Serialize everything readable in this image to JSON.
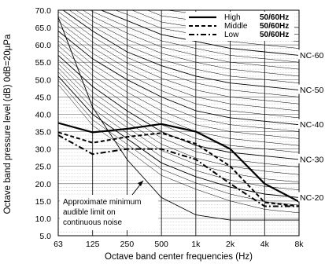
{
  "chart_data": {
    "type": "line",
    "xlabel": "Octave band center frequencies (Hz)",
    "ylabel": "Octave band pressure level (dB) 0dB=20µPa",
    "x_categories": [
      "63",
      "125",
      "250",
      "500",
      "1k",
      "2k",
      "4k",
      "8k"
    ],
    "ylim": [
      5,
      70
    ],
    "yticks": [
      "5.0",
      "10.0",
      "15.0",
      "20.0",
      "25.0",
      "30.0",
      "35.0",
      "40.0",
      "45.0",
      "50.0",
      "55.0",
      "60.0",
      "65.0",
      "70.0"
    ],
    "grid": true,
    "legend_position": "top-right",
    "series": [
      {
        "name": "High",
        "hz": "50/60Hz",
        "style": "solid",
        "values": [
          37.5,
          34.8,
          35.8,
          37.2,
          35.0,
          30.0,
          20.0,
          14.8
        ]
      },
      {
        "name": "Middle",
        "hz": "50/60Hz",
        "style": "dashed",
        "values": [
          34.8,
          31.8,
          33.5,
          34.6,
          31.5,
          25.0,
          14.6,
          13.5
        ]
      },
      {
        "name": "Low",
        "hz": "50/60Hz",
        "style": "dashdot",
        "values": [
          34.0,
          28.5,
          30.0,
          30.0,
          27.0,
          20.0,
          13.5,
          13.5
        ]
      }
    ],
    "nc_curves": [
      {
        "label": "NC-20",
        "values": [
          51,
          40,
          33,
          26,
          22,
          19,
          17,
          16
        ]
      },
      {
        "label": "NC-30",
        "values": [
          57,
          48,
          41,
          35,
          31,
          29,
          28,
          27
        ]
      },
      {
        "label": "NC-40",
        "values": [
          64,
          56,
          50,
          45,
          41,
          39,
          38,
          37
        ]
      },
      {
        "label": "NC-50",
        "values": [
          71,
          64,
          58,
          54,
          51,
          49,
          48,
          47
        ]
      },
      {
        "label": "NC-60",
        "values": [
          77,
          71,
          67,
          63,
          61,
          59,
          58,
          57
        ]
      }
    ],
    "threshold_curve": [
      68,
      42,
      27,
      16,
      11,
      9.5,
      9.5,
      9.5
    ],
    "annotation": [
      "Approximate minimum",
      "audible limit on",
      "continuous noise"
    ]
  }
}
